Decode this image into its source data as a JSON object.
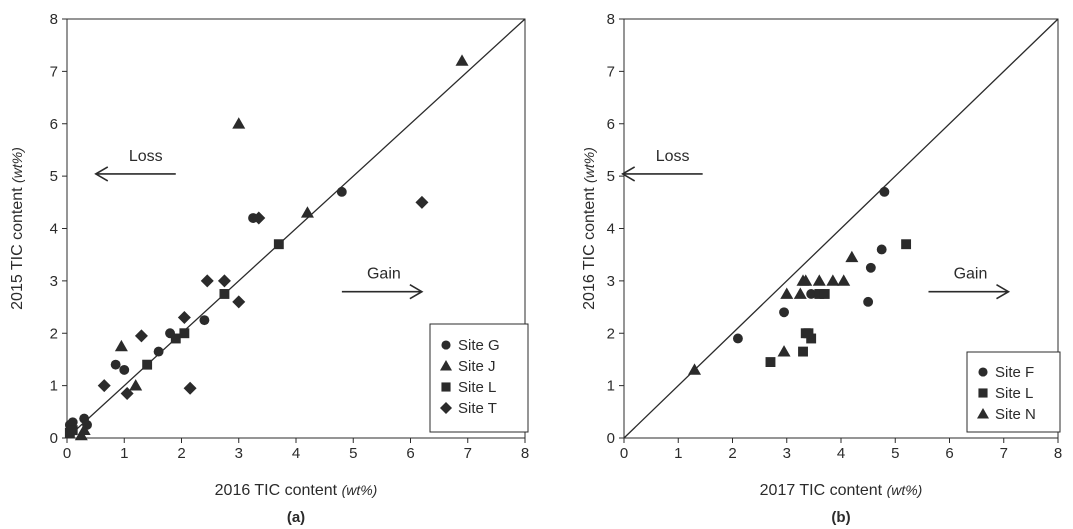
{
  "chart_data": [
    {
      "type": "scatter",
      "panel_label": "(a)",
      "xlabel": "2016 TIC content",
      "xunit": "(wt%)",
      "ylabel": "2015 TIC content",
      "yunit": "(wt%)",
      "xlim": [
        0,
        8
      ],
      "ylim": [
        0,
        8
      ],
      "xticks": [
        "0",
        "1",
        "2",
        "3",
        "4",
        "5",
        "6",
        "7",
        "8"
      ],
      "yticks": [
        "0",
        "1",
        "2",
        "3",
        "4",
        "5",
        "6",
        "7",
        "8"
      ],
      "grid": false,
      "reference_line": "y = x",
      "legend_position": "bottom-right",
      "annotations": [
        {
          "text": "Loss",
          "arrow": "left",
          "x": 1.9,
          "y": 5.1
        },
        {
          "text": "Gain",
          "arrow": "right",
          "x": 5.5,
          "y": 2.85
        }
      ],
      "series": [
        {
          "name": "Site G",
          "marker": "circle",
          "points": [
            [
              0.05,
              0.25
            ],
            [
              0.1,
              0.3
            ],
            [
              0.3,
              0.37
            ],
            [
              0.35,
              0.25
            ],
            [
              0.85,
              1.4
            ],
            [
              1.0,
              1.3
            ],
            [
              1.6,
              1.65
            ],
            [
              1.8,
              2.0
            ],
            [
              2.4,
              2.25
            ],
            [
              3.25,
              4.2
            ],
            [
              4.8,
              4.7
            ]
          ]
        },
        {
          "name": "Site J",
          "marker": "triangle",
          "points": [
            [
              0.25,
              0.05
            ],
            [
              0.3,
              0.15
            ],
            [
              0.95,
              1.75
            ],
            [
              1.2,
              1.0
            ],
            [
              3.0,
              6.0
            ],
            [
              4.2,
              4.3
            ],
            [
              6.9,
              7.2
            ]
          ]
        },
        {
          "name": "Site L",
          "marker": "square",
          "points": [
            [
              0.05,
              0.1
            ],
            [
              0.1,
              0.15
            ],
            [
              1.4,
              1.4
            ],
            [
              1.9,
              1.9
            ],
            [
              2.05,
              2.0
            ],
            [
              2.75,
              2.75
            ],
            [
              3.7,
              3.7
            ]
          ]
        },
        {
          "name": "Site T",
          "marker": "diamond",
          "points": [
            [
              0.65,
              1.0
            ],
            [
              1.05,
              0.85
            ],
            [
              1.3,
              1.95
            ],
            [
              2.05,
              2.3
            ],
            [
              2.15,
              0.95
            ],
            [
              2.45,
              3.0
            ],
            [
              2.75,
              3.0
            ],
            [
              3.0,
              2.6
            ],
            [
              3.35,
              4.2
            ],
            [
              6.2,
              4.5
            ]
          ]
        }
      ]
    },
    {
      "type": "scatter",
      "panel_label": "(b)",
      "xlabel": "2017 TIC content",
      "xunit": "(wt%)",
      "ylabel": "2016 TIC content",
      "yunit": "(wt%)",
      "xlim": [
        0,
        8
      ],
      "ylim": [
        0,
        8
      ],
      "xticks": [
        "0",
        "1",
        "2",
        "3",
        "4",
        "5",
        "6",
        "7",
        "8"
      ],
      "yticks": [
        "0",
        "1",
        "2",
        "3",
        "4",
        "5",
        "6",
        "7",
        "8"
      ],
      "grid": false,
      "reference_line": "y = x",
      "legend_position": "bottom-right",
      "annotations": [
        {
          "text": "Loss",
          "arrow": "left",
          "x": 1.45,
          "y": 5.1
        },
        {
          "text": "Gain",
          "arrow": "right",
          "x": 6.35,
          "y": 2.85
        }
      ],
      "series": [
        {
          "name": "Site F",
          "marker": "circle",
          "points": [
            [
              2.1,
              1.9
            ],
            [
              2.95,
              2.4
            ],
            [
              3.45,
              2.75
            ],
            [
              4.5,
              2.6
            ],
            [
              4.55,
              3.25
            ],
            [
              4.75,
              3.6
            ],
            [
              4.8,
              4.7
            ]
          ]
        },
        {
          "name": "Site L",
          "marker": "square",
          "points": [
            [
              2.7,
              1.45
            ],
            [
              3.3,
              1.65
            ],
            [
              3.35,
              2.0
            ],
            [
              3.45,
              1.9
            ],
            [
              3.4,
              2.0
            ],
            [
              3.6,
              2.75
            ],
            [
              3.7,
              2.75
            ],
            [
              5.2,
              3.7
            ]
          ]
        },
        {
          "name": "Site N",
          "marker": "triangle",
          "points": [
            [
              1.3,
              1.3
            ],
            [
              2.95,
              1.65
            ],
            [
              3.0,
              2.75
            ],
            [
              3.25,
              2.75
            ],
            [
              3.3,
              3.0
            ],
            [
              3.35,
              3.0
            ],
            [
              3.6,
              3.0
            ],
            [
              3.85,
              3.0
            ],
            [
              4.05,
              3.0
            ],
            [
              4.2,
              3.45
            ]
          ]
        }
      ]
    }
  ]
}
